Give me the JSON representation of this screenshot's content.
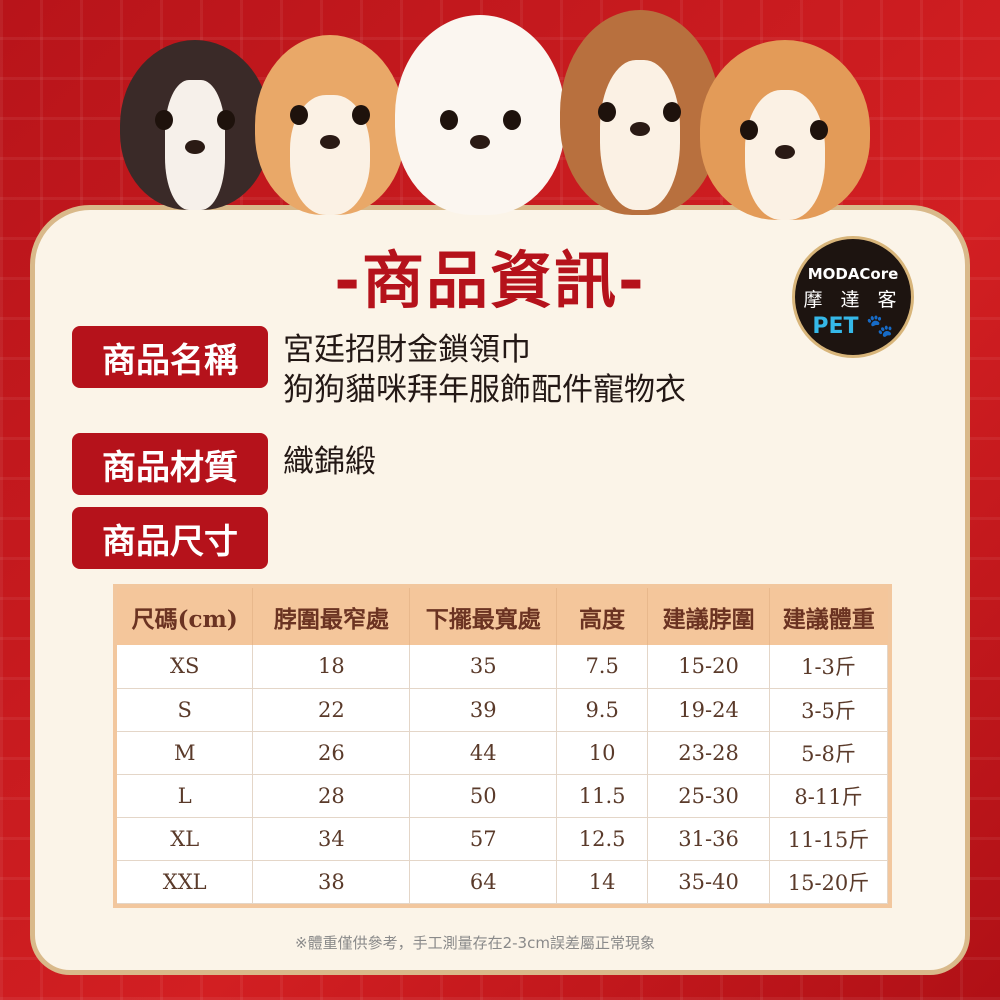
{
  "title": "-商品資訊-",
  "logo": {
    "brand": "MODACore",
    "chinese": "摩 達 客",
    "pet": "PET"
  },
  "fields": [
    {
      "label": "商品名稱",
      "value_lines": [
        "宮廷招財金鎖領巾",
        "狗狗貓咪拜年服飾配件寵物衣"
      ]
    },
    {
      "label": "商品材質",
      "value_lines": [
        "織錦緞"
      ]
    },
    {
      "label": "商品尺寸",
      "value_lines": []
    }
  ],
  "size_table": {
    "headers": [
      "尺碼(cm)",
      "脖圍最窄處",
      "下擺最寬處",
      "高度",
      "建議脖圍",
      "建議體重"
    ],
    "rows": [
      [
        "XS",
        "18",
        "35",
        "7.5",
        "15-20",
        "1-3斤"
      ],
      [
        "S",
        "22",
        "39",
        "9.5",
        "19-24",
        "3-5斤"
      ],
      [
        "M",
        "26",
        "44",
        "10",
        "23-28",
        "5-8斤"
      ],
      [
        "L",
        "28",
        "50",
        "11.5",
        "25-30",
        "8-11斤"
      ],
      [
        "XL",
        "34",
        "57",
        "12.5",
        "31-36",
        "11-15斤"
      ],
      [
        "XXL",
        "38",
        "64",
        "14",
        "35-40",
        "15-20斤"
      ]
    ]
  },
  "note": "※體重僅供參考，手工測量存在2-3cm誤差屬正常現象",
  "colors": {
    "background": "#c8181d",
    "accent": "#b5121b",
    "panel": "#fbf4e8",
    "table_header": "#f4c69b"
  }
}
